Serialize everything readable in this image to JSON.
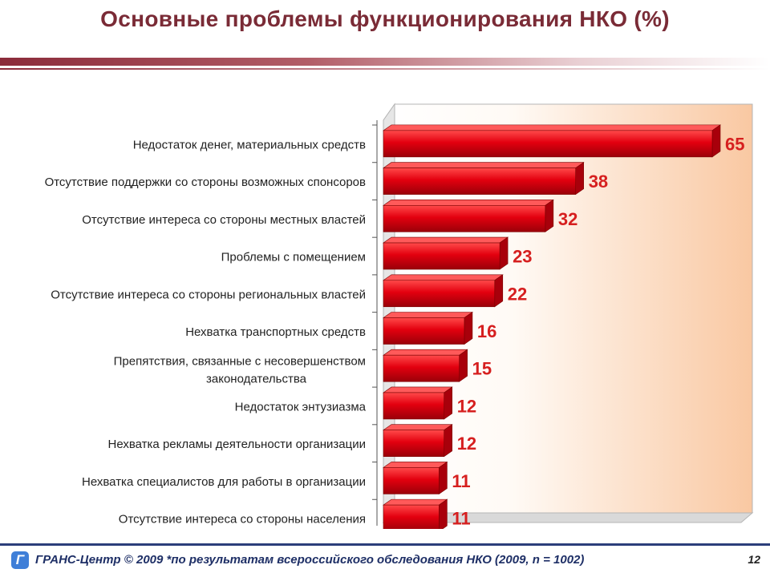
{
  "slide": {
    "title": "Основные проблемы функционирования НКО (%)",
    "page_number": "12"
  },
  "footer": {
    "logo_icon": "grans-logo-icon",
    "text": "ГРАНС-Центр © 2009 *по результатам всероссийского обследования НКО (2009, n = 1002)"
  },
  "colors": {
    "title": "#7a2b36",
    "bar": "#e3000f",
    "value_label": "#d61f1f"
  },
  "chart_data": {
    "type": "bar",
    "orientation": "horizontal",
    "title": "",
    "xlabel": "",
    "ylabel": "",
    "xlim": [
      0,
      70
    ],
    "grid": false,
    "legend": "none",
    "categories": [
      "Недостаток денег, материальных средств",
      "Отсутствие поддержки со стороны возможных спонсоров",
      "Отсутствие интереса со стороны местных властей",
      "Проблемы с помещением",
      "Отсутствие интереса со стороны региональных властей",
      "Нехватка транспортных средств",
      "Препятствия, связанные с несовершенством законодательства",
      "Недостаток энтузиазма",
      "Нехватка рекламы деятельности организации",
      "Нехватка специалистов для работы в организации",
      "Отсутствие интереса со стороны населения"
    ],
    "values": [
      65,
      38,
      32,
      23,
      22,
      16,
      15,
      12,
      12,
      11,
      11
    ]
  }
}
